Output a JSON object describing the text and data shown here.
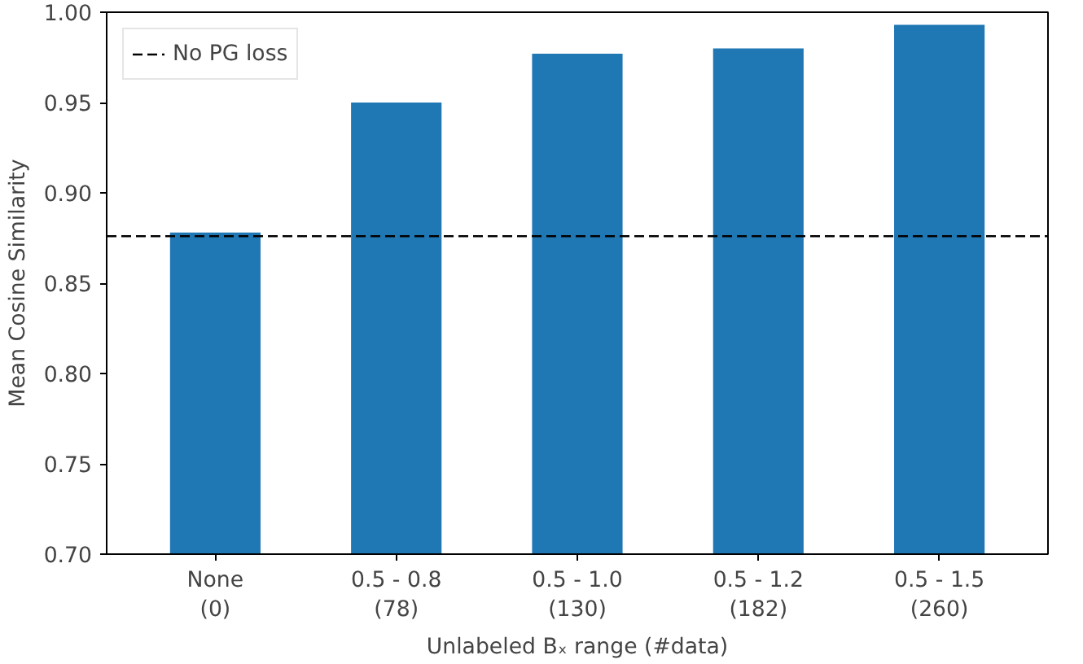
{
  "chart_data": {
    "type": "bar",
    "xlabel": "Unlabeled Bₓ range (#data)",
    "ylabel": "Mean Cosine Similarity",
    "categories": [
      "None\n(0)",
      "0.5 - 0.8\n(78)",
      "0.5 - 1.0\n(130)",
      "0.5 - 1.2\n(182)",
      "0.5 - 1.5\n(260)"
    ],
    "values": [
      0.878,
      0.95,
      0.977,
      0.98,
      0.993
    ],
    "color": "#1f77b4",
    "ylim": [
      0.7,
      1.0
    ],
    "yticks": [
      {
        "value": 0.7,
        "label": "0.70"
      },
      {
        "value": 0.75,
        "label": "0.75"
      },
      {
        "value": 0.8,
        "label": "0.80"
      },
      {
        "value": 0.85,
        "label": "0.85"
      },
      {
        "value": 0.9,
        "label": "0.90"
      },
      {
        "value": 0.95,
        "label": "0.95"
      },
      {
        "value": 1.0,
        "label": "1.00"
      }
    ],
    "ref_lines": [
      {
        "axis": "y",
        "value": 0.876,
        "label": "No PG loss",
        "color": "#000000",
        "line_style": "dashed"
      }
    ],
    "legend": "top left",
    "grid": false
  }
}
